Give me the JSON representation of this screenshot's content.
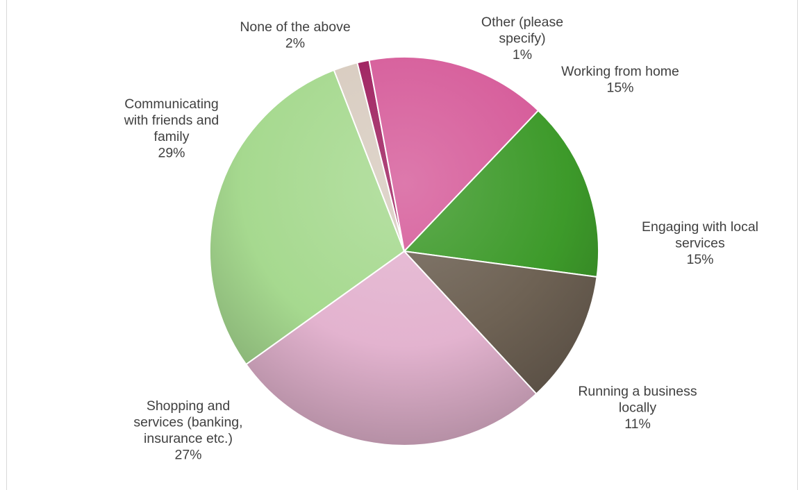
{
  "chart_data": {
    "type": "pie",
    "title": "",
    "slices": [
      {
        "label": "Other (please specify)",
        "value": 1,
        "value_text": "1%",
        "color": "#9e1f5e",
        "label_lines": [
          "Other (please",
          "specify)",
          "1%"
        ]
      },
      {
        "label": "Working from home",
        "value": 15,
        "value_text": "15%",
        "color": "#d65c9a",
        "label_lines": [
          "Working from home",
          "15%"
        ]
      },
      {
        "label": "Engaging with local services",
        "value": 15,
        "value_text": "15%",
        "color": "#3d9a2a",
        "label_lines": [
          "Engaging with local",
          "services",
          "15%"
        ]
      },
      {
        "label": "Running a business locally",
        "value": 11,
        "value_text": "11%",
        "color": "#6e6254",
        "label_lines": [
          "Running a business",
          "locally",
          "11%"
        ]
      },
      {
        "label": "Shopping and services (banking, insurance etc.)",
        "value": 27,
        "value_text": "27%",
        "color": "#e3b3cf",
        "label_lines": [
          "Shopping and",
          "services (banking,",
          "insurance etc.)",
          "27%"
        ]
      },
      {
        "label": "Communicating with friends and family",
        "value": 29,
        "value_text": "29%",
        "color": "#a6d98f",
        "label_lines": [
          "Communicating",
          "with friends and",
          "family",
          "29%"
        ]
      },
      {
        "label": "None of the above",
        "value": 2,
        "value_text": "2%",
        "color": "#d8ccc0",
        "label_lines": [
          "None of the above",
          "2%"
        ]
      }
    ],
    "legend": "none",
    "data_labels": "outside"
  }
}
